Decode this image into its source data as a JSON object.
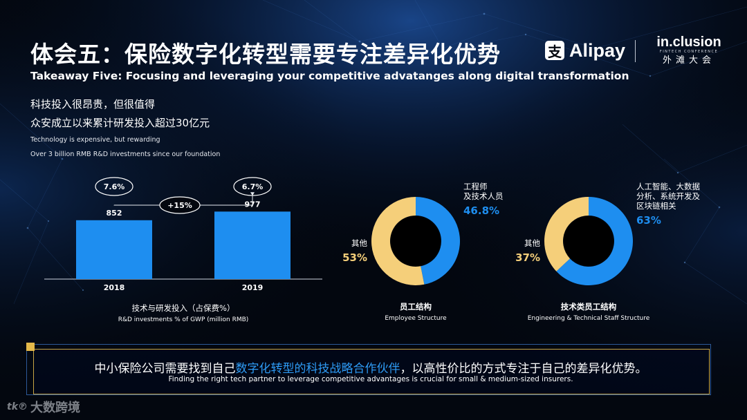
{
  "header": {
    "title": "体会五：保险数字化转型需要专注差异化优势",
    "subtitle": "Takeaway Five: Focusing and leveraging your competitive advatanges along digital transformation",
    "logo_alipay_text": "Alipay",
    "logo_inclusion_main": "in.clusion",
    "logo_inclusion_sub": "FINTECH CONFERENCE",
    "logo_inclusion_cn": "外滩大会"
  },
  "tagline": {
    "cn_line1": "科技投入很昂贵，但很值得",
    "cn_line2": "众安成立以来累计研发投入超过30亿元",
    "en_line1": "Technology is expensive, but rewarding",
    "en_line2": "Over 3 billion RMB R&D investments since our foundation"
  },
  "chart_data": [
    {
      "type": "bar",
      "categories": [
        "2018",
        "2019"
      ],
      "values": [
        852,
        977
      ],
      "percent_labels": [
        "7.6%",
        "6.7%"
      ],
      "growth_label": "+15%",
      "title": "技术与研发投入（占保费%）",
      "subtitle": "R&D investments % of GWP (million RMB)",
      "ylim": [
        0,
        1200
      ],
      "grid": false
    },
    {
      "type": "pie",
      "donut": true,
      "title": "员工结构",
      "subtitle": "Employee Structure",
      "slices": [
        {
          "label": "工程师\n及技术人员",
          "value": 46.8,
          "value_label": "46.8%",
          "color": "#1e8ef0"
        },
        {
          "label": "其他",
          "value": 53,
          "value_label": "53%",
          "color": "#f5cf7a"
        }
      ]
    },
    {
      "type": "pie",
      "donut": true,
      "title": "技术类员工结构",
      "subtitle": "Engineering & Technical Staff Structure",
      "slices": [
        {
          "label": "人工智能、大数据\n分析、系统开发及\n区块链相关",
          "value": 63,
          "value_label": "63%",
          "color": "#1e8ef0"
        },
        {
          "label": "其他",
          "value": 37,
          "value_label": "37%",
          "color": "#f5cf7a"
        }
      ]
    }
  ],
  "footer": {
    "cn_part1": "中小保险公司需要找到自己",
    "cn_highlight": "数字化转型的科技战略合作伙伴",
    "cn_part2": "，以高性价比的方式专注于自己的差异化优势。",
    "en": "Finding the right tech partner to leverage competitive advantages is crucial for small & medium-sized insurers."
  },
  "watermark": {
    "icon": "tk℗",
    "text": "大数跨境"
  },
  "colors": {
    "accent_blue": "#1e8ef0",
    "accent_yellow": "#f5cf7a",
    "highlight_blue": "#2e9bf5",
    "footer_gold": "#c9a645"
  }
}
